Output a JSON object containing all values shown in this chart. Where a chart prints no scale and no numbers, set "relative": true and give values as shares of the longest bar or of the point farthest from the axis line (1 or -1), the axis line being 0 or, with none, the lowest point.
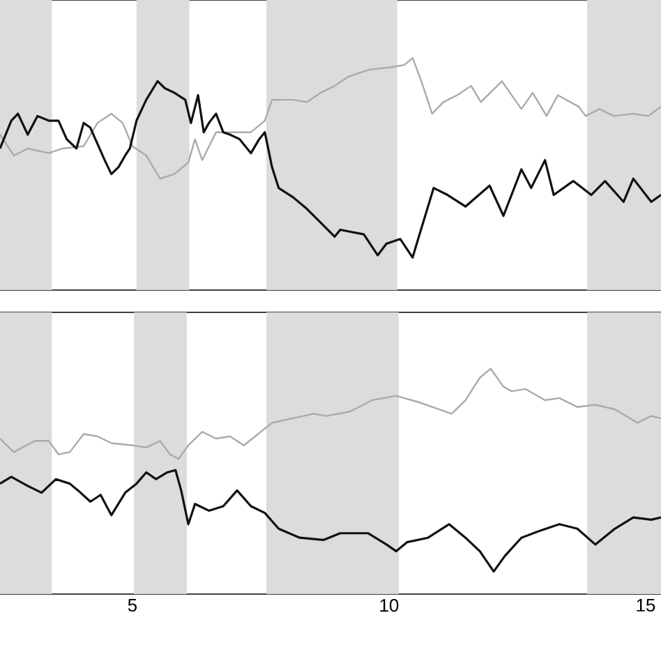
{
  "chart_data": [
    {
      "type": "line",
      "relative": true,
      "tick_labels": false,
      "xlim": [
        2.42,
        15.3
      ],
      "bands": [
        {
          "axis": "x",
          "from": 2.42,
          "to": 3.43,
          "color": "#dcdcdc"
        },
        {
          "axis": "x",
          "from": 5.08,
          "to": 6.11,
          "color": "#dcdcdc"
        },
        {
          "axis": "x",
          "from": 7.61,
          "to": 10.16,
          "color": "#dcdcdc"
        },
        {
          "axis": "x",
          "from": 13.86,
          "to": 15.3,
          "color": "#dcdcdc"
        }
      ],
      "series": [
        {
          "color": "#aaaaaa",
          "x": [
            2.42,
            2.69,
            2.96,
            3.37,
            3.64,
            4.05,
            4.32,
            4.59,
            4.81,
            5.0,
            5.27,
            5.54,
            5.82,
            6.09,
            6.22,
            6.36,
            6.63,
            7.04,
            7.31,
            7.58,
            7.72,
            8.13,
            8.4,
            8.67,
            8.94,
            9.21,
            9.62,
            10.03,
            10.3,
            10.46,
            10.63,
            10.84,
            11.06,
            11.33,
            11.6,
            11.79,
            12.2,
            12.58,
            12.8,
            13.07,
            13.29,
            13.7,
            13.83,
            14.1,
            14.38,
            14.76,
            15.05,
            15.3
          ],
          "values": [
            0.67,
            0.58,
            0.61,
            0.59,
            0.61,
            0.62,
            0.72,
            0.76,
            0.72,
            0.62,
            0.58,
            0.48,
            0.5,
            0.55,
            0.65,
            0.56,
            0.68,
            0.68,
            0.68,
            0.73,
            0.82,
            0.82,
            0.81,
            0.85,
            0.88,
            0.92,
            0.95,
            0.96,
            0.97,
            1,
            0.9,
            0.76,
            0.81,
            0.84,
            0.88,
            0.81,
            0.9,
            0.78,
            0.85,
            0.75,
            0.84,
            0.79,
            0.75,
            0.78,
            0.75,
            0.76,
            0.75,
            0.79
          ]
        },
        {
          "color": "#111111",
          "x": [
            2.42,
            2.64,
            2.77,
            2.96,
            3.15,
            3.37,
            3.56,
            3.72,
            3.91,
            4.05,
            4.18,
            4.46,
            4.59,
            4.73,
            4.86,
            4.95,
            5.08,
            5.27,
            5.49,
            5.63,
            5.82,
            6.03,
            6.14,
            6.28,
            6.39,
            6.49,
            6.63,
            6.77,
            6.9,
            7.09,
            7.31,
            7.47,
            7.58,
            7.72,
            7.85,
            8.13,
            8.4,
            8.67,
            8.94,
            9.05,
            9.51,
            9.78,
            9.95,
            10.22,
            10.46,
            10.54,
            10.87,
            11.14,
            11.49,
            11.96,
            12.23,
            12.58,
            12.77,
            13.04,
            13.21,
            13.59,
            13.94,
            14.21,
            14.57,
            14.76,
            15.11,
            15.3
          ],
          "values": [
            0.61,
            0.73,
            0.76,
            0.67,
            0.75,
            0.73,
            0.73,
            0.65,
            0.61,
            0.72,
            0.7,
            0.56,
            0.5,
            0.53,
            0.58,
            0.61,
            0.73,
            0.82,
            0.9,
            0.87,
            0.85,
            0.82,
            0.72,
            0.84,
            0.68,
            0.72,
            0.76,
            0.68,
            0.67,
            0.65,
            0.59,
            0.65,
            0.68,
            0.53,
            0.44,
            0.4,
            0.35,
            0.29,
            0.23,
            0.26,
            0.24,
            0.15,
            0.2,
            0.22,
            0.14,
            0.2,
            0.44,
            0.41,
            0.36,
            0.45,
            0.32,
            0.52,
            0.44,
            0.56,
            0.41,
            0.47,
            0.41,
            0.47,
            0.38,
            0.48,
            0.38,
            0.41
          ]
        }
      ]
    },
    {
      "type": "line",
      "relative": true,
      "tick_labels": "x",
      "xlim": [
        2.42,
        15.3
      ],
      "xticks": [
        5,
        10,
        15
      ],
      "bands": [
        {
          "axis": "x",
          "from": 2.42,
          "to": 3.43,
          "color": "#dcdcdc"
        },
        {
          "axis": "x",
          "from": 5.03,
          "to": 6.06,
          "color": "#dcdcdc"
        },
        {
          "axis": "x",
          "from": 7.61,
          "to": 10.19,
          "color": "#dcdcdc"
        },
        {
          "axis": "x",
          "from": 13.86,
          "to": 15.3,
          "color": "#dcdcdc"
        }
      ],
      "series": [
        {
          "color": "#aaaaaa",
          "x": [
            2.42,
            2.69,
            3.1,
            3.37,
            3.56,
            3.78,
            4.05,
            4.32,
            4.59,
            5.0,
            5.27,
            5.54,
            5.73,
            5.9,
            6.09,
            6.36,
            6.63,
            6.9,
            7.17,
            7.45,
            7.72,
            8.13,
            8.53,
            8.78,
            9.24,
            9.67,
            10.14,
            10.6,
            11.22,
            11.49,
            11.77,
            11.98,
            12.23,
            12.39,
            12.66,
            13.04,
            13.32,
            13.67,
            14.02,
            14.4,
            14.84,
            15.11,
            15.3
          ],
          "values": [
            0.69,
            0.63,
            0.68,
            0.68,
            0.62,
            0.63,
            0.71,
            0.7,
            0.67,
            0.66,
            0.65,
            0.68,
            0.62,
            0.6,
            0.66,
            0.72,
            0.69,
            0.7,
            0.66,
            0.71,
            0.76,
            0.78,
            0.8,
            0.79,
            0.81,
            0.86,
            0.88,
            0.85,
            0.8,
            0.86,
            0.96,
            1,
            0.92,
            0.9,
            0.91,
            0.86,
            0.87,
            0.83,
            0.84,
            0.82,
            0.76,
            0.79,
            0.78
          ]
        },
        {
          "color": "#111111",
          "x": [
            2.42,
            2.64,
            2.96,
            3.23,
            3.51,
            3.78,
            3.99,
            4.18,
            4.38,
            4.59,
            4.86,
            5.08,
            5.27,
            5.46,
            5.68,
            5.84,
            5.95,
            6.09,
            6.22,
            6.49,
            6.77,
            7.04,
            7.31,
            7.58,
            7.85,
            8.26,
            8.72,
            9.05,
            9.59,
            9.95,
            10.14,
            10.35,
            10.76,
            11.17,
            11.49,
            11.77,
            12.04,
            12.26,
            12.58,
            12.93,
            13.32,
            13.67,
            14.02,
            14.4,
            14.76,
            15.11,
            15.3
          ],
          "values": [
            0.49,
            0.52,
            0.48,
            0.45,
            0.51,
            0.49,
            0.45,
            0.41,
            0.44,
            0.35,
            0.45,
            0.49,
            0.54,
            0.51,
            0.54,
            0.55,
            0.46,
            0.31,
            0.4,
            0.37,
            0.39,
            0.46,
            0.39,
            0.36,
            0.29,
            0.25,
            0.24,
            0.27,
            0.27,
            0.22,
            0.19,
            0.23,
            0.25,
            0.31,
            0.25,
            0.19,
            0.1,
            0.17,
            0.25,
            0.28,
            0.31,
            0.29,
            0.22,
            0.29,
            0.34,
            0.33,
            0.34
          ]
        }
      ]
    }
  ]
}
